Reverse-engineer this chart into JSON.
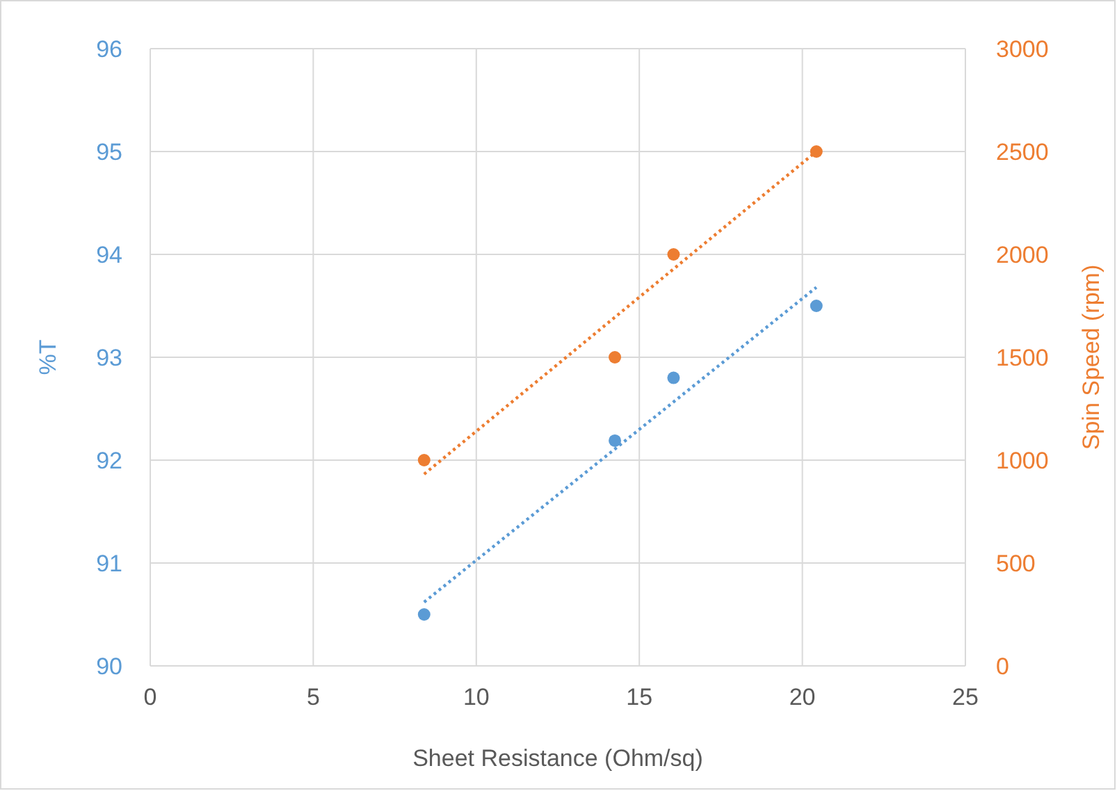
{
  "chart_data": {
    "type": "scatter",
    "xlabel": "Sheet Resistance (Ohm/sq)",
    "ylabel": "%T",
    "y2label": "Spin Speed (rpm)",
    "xlim": [
      0,
      25
    ],
    "xticks": [
      0,
      5,
      10,
      15,
      20,
      25
    ],
    "ylim": [
      90,
      96
    ],
    "yticks": [
      90,
      91,
      92,
      93,
      94,
      95,
      96
    ],
    "y2lim": [
      0,
      3000
    ],
    "y2ticks": [
      0,
      500,
      1000,
      1500,
      2000,
      2500,
      3000
    ],
    "grid": true,
    "marker": "circle",
    "series": [
      {
        "color": "#5b9bd5",
        "x": [
          8.4,
          14.25,
          16.05,
          20.43
        ],
        "values": [
          90.5,
          92.19,
          92.8,
          93.5
        ]
      },
      {
        "color": "#ed7d31",
        "axis": "y2",
        "x": [
          8.4,
          14.25,
          16.05,
          20.43
        ],
        "values": [
          1000,
          1500,
          2000,
          2500
        ]
      },
      {
        "type": "line",
        "color": "#5b9bd5",
        "line_style": "dotted",
        "marker": "none",
        "x": [
          8.4,
          20.43
        ],
        "values": [
          90.62,
          93.68
        ]
      },
      {
        "type": "line",
        "color": "#ed7d31",
        "line_style": "dotted",
        "marker": "none",
        "axis": "y2",
        "x": [
          8.4,
          20.43
        ],
        "values": [
          932,
          2500
        ]
      }
    ]
  }
}
